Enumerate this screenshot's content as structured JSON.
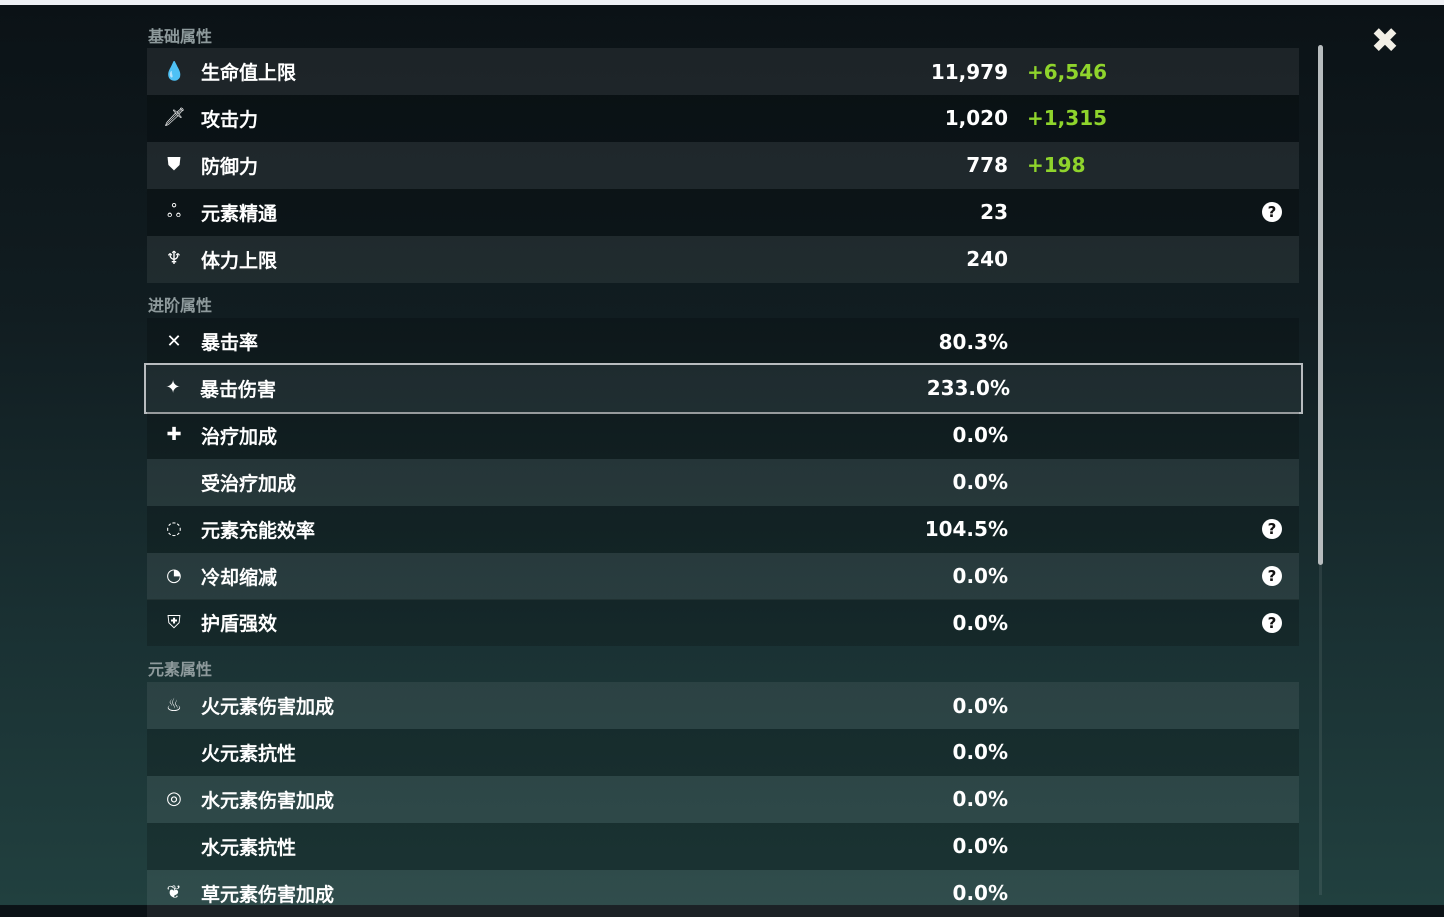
{
  "sections": [
    {
      "title": "基础属性",
      "rows": [
        {
          "icon": "hp-drop-icon",
          "glyph": "💧",
          "label": "生命值上限",
          "value": "11,979",
          "bonus": "+6,546"
        },
        {
          "icon": "sword-icon",
          "glyph": "🗡",
          "label": "攻击力",
          "value": "1,020",
          "bonus": "+1,315"
        },
        {
          "icon": "shield-icon",
          "glyph": "⛊",
          "label": "防御力",
          "value": "778",
          "bonus": "+198"
        },
        {
          "icon": "elemental-mastery-icon",
          "glyph": "ஃ",
          "label": "元素精通",
          "value": "23",
          "help": true
        },
        {
          "icon": "stamina-icon",
          "glyph": "♆",
          "label": "体力上限",
          "value": "240"
        }
      ]
    },
    {
      "title": "进阶属性",
      "rows": [
        {
          "icon": "crit-rate-icon",
          "glyph": "✕",
          "label": "暴击率",
          "value": "80.3%"
        },
        {
          "icon": "crit-dmg-icon",
          "glyph": "✦",
          "label": "暴击伤害",
          "value": "233.0%",
          "selected": true
        },
        {
          "icon": "healing-icon",
          "glyph": "✚",
          "label": "治疗加成",
          "value": "0.0%"
        },
        {
          "label": "受治疗加成",
          "value": "0.0%"
        },
        {
          "icon": "energy-recharge-icon",
          "glyph": "◌",
          "label": "元素充能效率",
          "value": "104.5%",
          "help": true
        },
        {
          "icon": "cooldown-icon",
          "glyph": "◔",
          "label": "冷却缩减",
          "value": "0.0%",
          "help": true
        },
        {
          "icon": "shield-strength-icon",
          "glyph": "⛨",
          "label": "护盾强效",
          "value": "0.0%",
          "help": true
        }
      ]
    },
    {
      "title": "元素属性",
      "rows": [
        {
          "icon": "pyro-icon",
          "glyph": "♨",
          "label": "火元素伤害加成",
          "value": "0.0%"
        },
        {
          "label": "火元素抗性",
          "value": "0.0%"
        },
        {
          "icon": "hydro-icon",
          "glyph": "◎",
          "label": "水元素伤害加成",
          "value": "0.0%"
        },
        {
          "label": "水元素抗性",
          "value": "0.0%"
        },
        {
          "icon": "dendro-icon",
          "glyph": "❦",
          "label": "草元素伤害加成",
          "value": "0.0%"
        }
      ]
    }
  ],
  "help_glyph": "?",
  "close_glyph": "✖",
  "colors": {
    "bonus": "#8fd42c",
    "selected_border": "#b8bcbf"
  }
}
